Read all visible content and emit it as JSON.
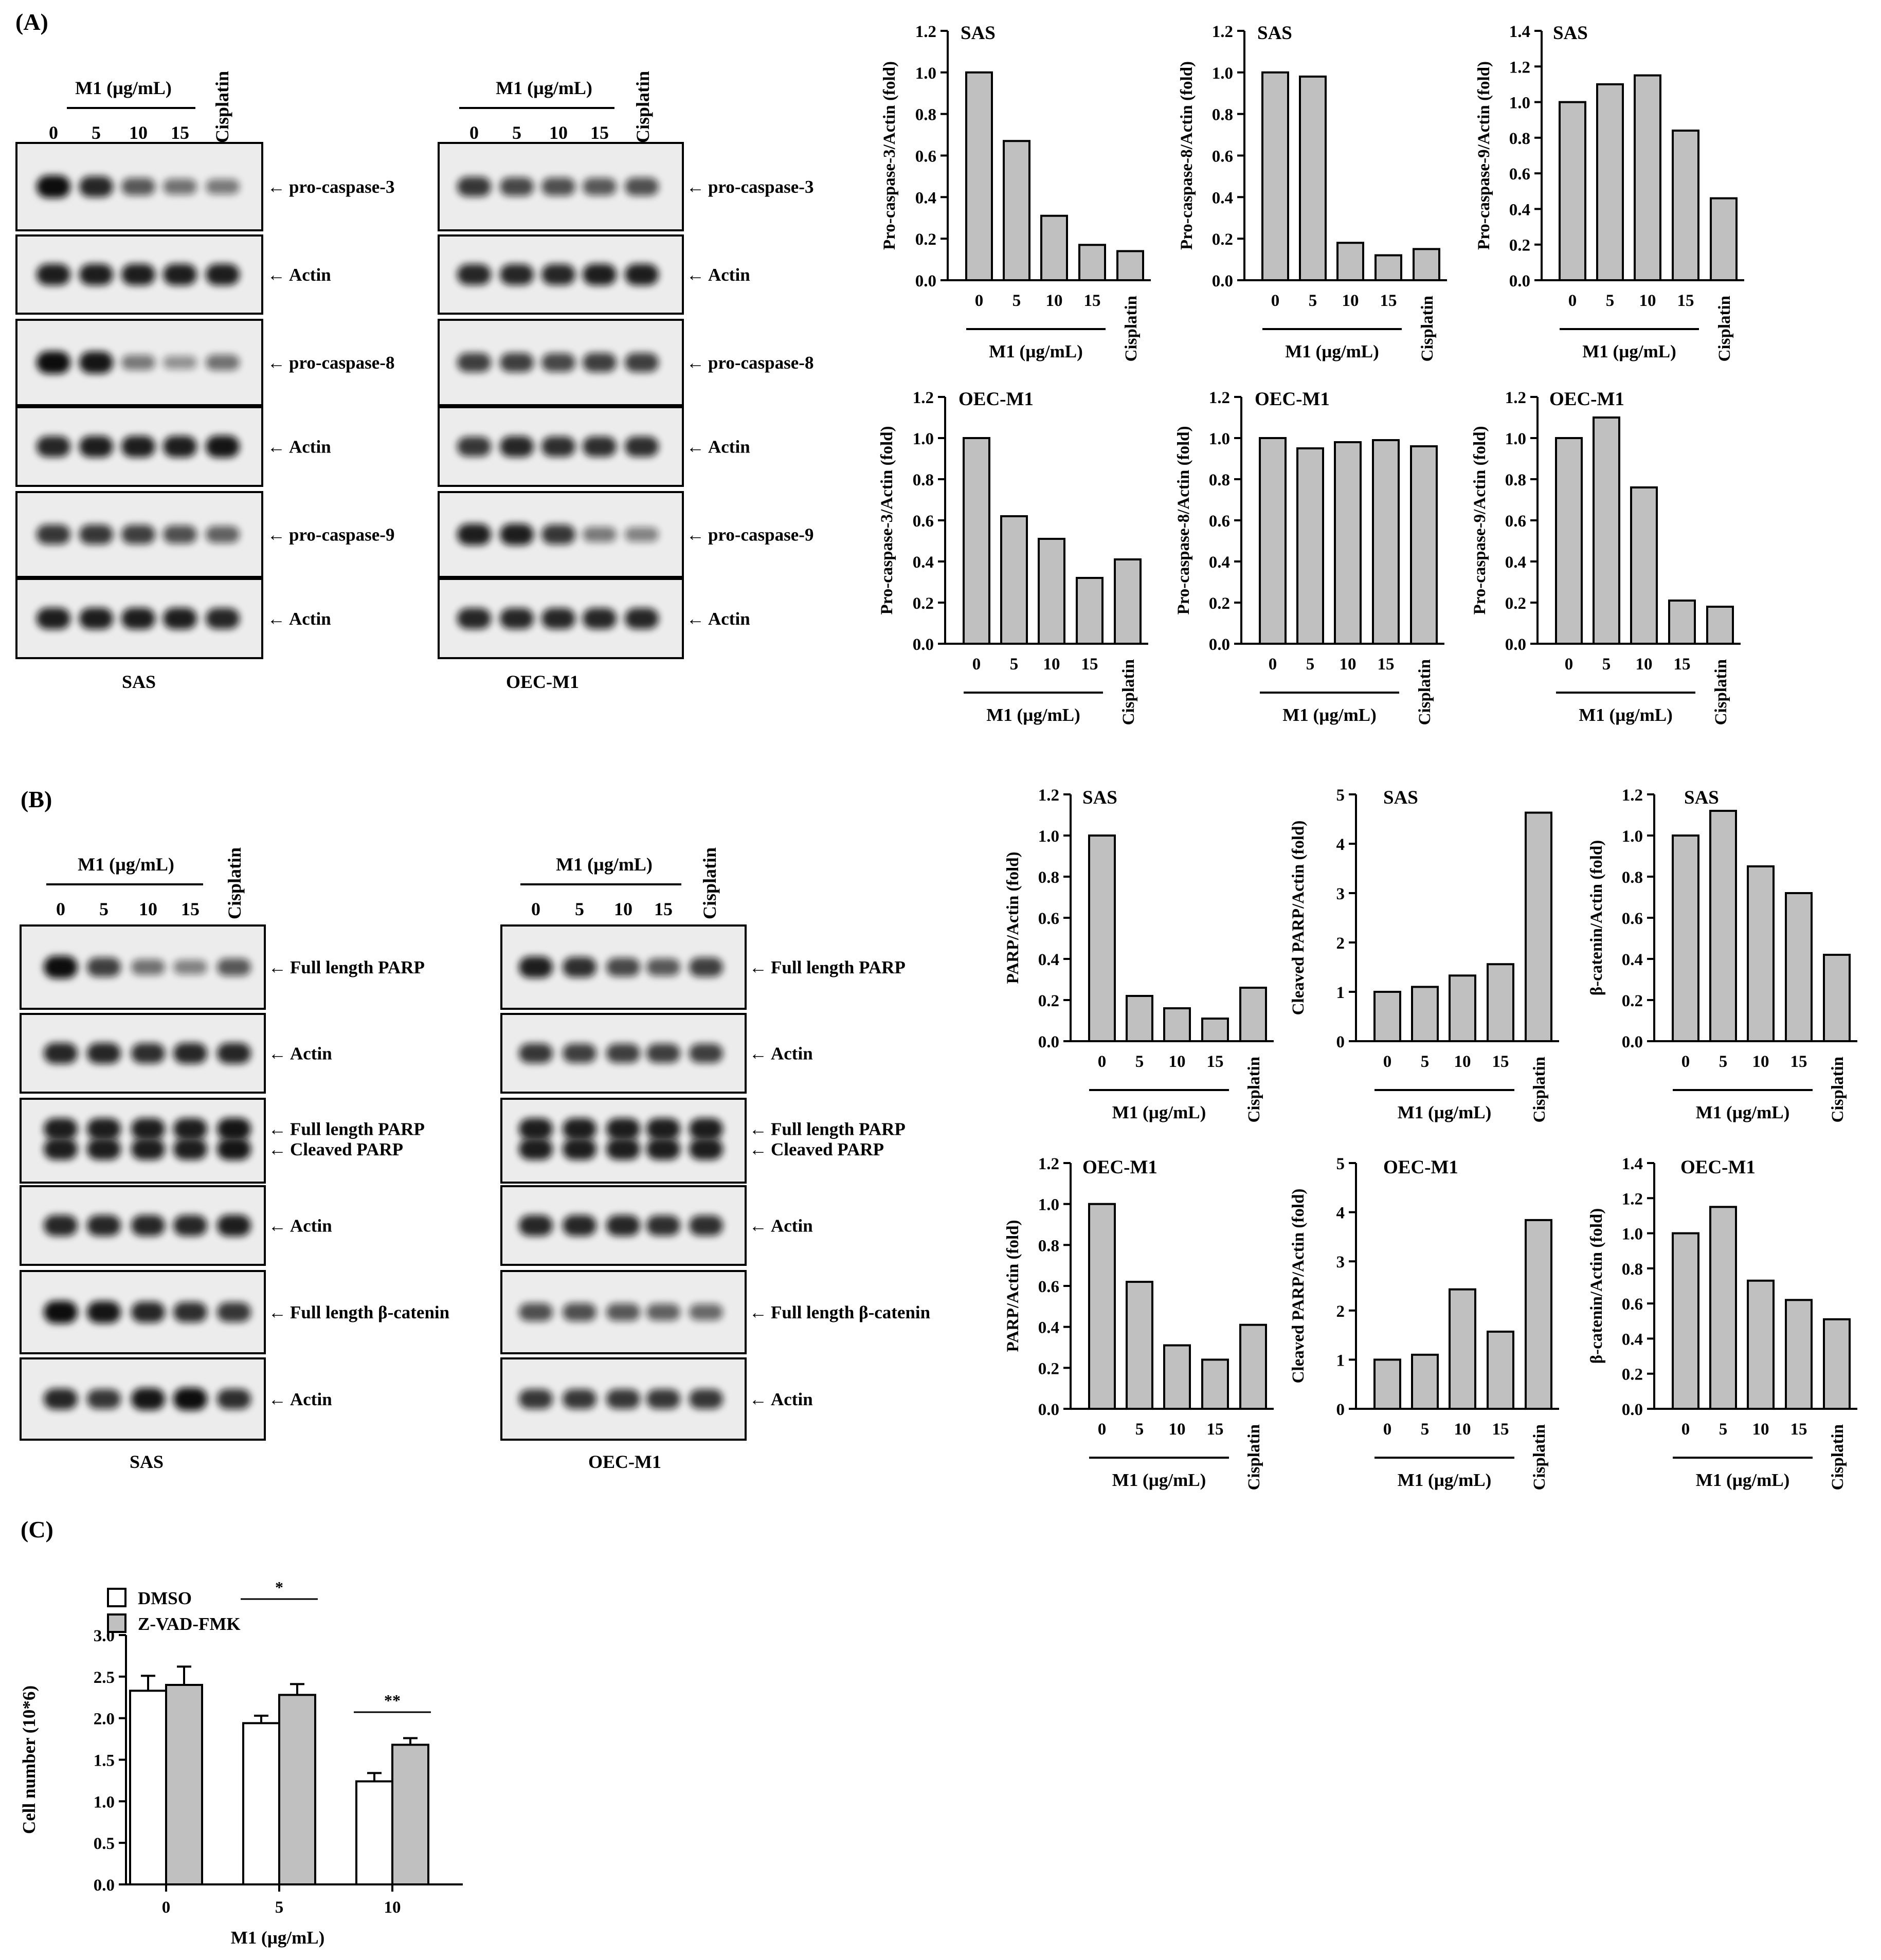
{
  "panels": [
    {
      "id": "A",
      "label": "(A)"
    },
    {
      "id": "B",
      "label": "(B)"
    },
    {
      "id": "C",
      "label": "(C)"
    }
  ],
  "common": {
    "m1_label": "M1 (µg/mL)",
    "cisplatin": "Cisplatin",
    "lanes": [
      "0",
      "5",
      "10",
      "15"
    ]
  },
  "blots": {
    "A_SAS": {
      "cell": "SAS",
      "strips": [
        {
          "labels": [
            "pro-caspase-3"
          ],
          "intensity": [
            1.0,
            0.85,
            0.55,
            0.4,
            0.35
          ]
        },
        {
          "labels": [
            "Actin"
          ],
          "intensity": [
            0.9,
            0.9,
            0.9,
            0.9,
            0.9
          ]
        },
        {
          "labels": [
            "pro-caspase-8"
          ],
          "intensity": [
            1.0,
            0.95,
            0.35,
            0.2,
            0.4
          ]
        },
        {
          "labels": [
            "Actin"
          ],
          "intensity": [
            0.85,
            0.9,
            0.9,
            0.9,
            0.95
          ]
        },
        {
          "labels": [
            "pro-caspase-9"
          ],
          "intensity": [
            0.75,
            0.75,
            0.7,
            0.6,
            0.5
          ]
        },
        {
          "labels": [
            "Actin"
          ],
          "intensity": [
            0.9,
            0.9,
            0.9,
            0.9,
            0.85
          ]
        }
      ]
    },
    "A_OEC": {
      "cell": "OEC-M1",
      "strips": [
        {
          "labels": [
            "pro-caspase-3"
          ],
          "intensity": [
            0.75,
            0.65,
            0.6,
            0.55,
            0.6
          ]
        },
        {
          "labels": [
            "Actin"
          ],
          "intensity": [
            0.85,
            0.85,
            0.85,
            0.9,
            0.9
          ]
        },
        {
          "labels": [
            "pro-caspase-8"
          ],
          "intensity": [
            0.7,
            0.7,
            0.65,
            0.7,
            0.7
          ]
        },
        {
          "labels": [
            "Actin"
          ],
          "intensity": [
            0.75,
            0.85,
            0.8,
            0.8,
            0.8
          ]
        },
        {
          "labels": [
            "pro-caspase-9"
          ],
          "intensity": [
            0.9,
            0.9,
            0.75,
            0.35,
            0.3
          ]
        },
        {
          "labels": [
            "Actin"
          ],
          "intensity": [
            0.85,
            0.85,
            0.85,
            0.85,
            0.85
          ]
        }
      ]
    },
    "B_SAS": {
      "cell": "SAS",
      "strips": [
        {
          "labels": [
            "Full length PARP"
          ],
          "intensity": [
            1.0,
            0.7,
            0.4,
            0.3,
            0.55
          ]
        },
        {
          "labels": [
            "Actin"
          ],
          "intensity": [
            0.85,
            0.85,
            0.8,
            0.85,
            0.85
          ]
        },
        {
          "labels": [
            "Full length PARP",
            "Cleaved PARP"
          ],
          "intensity": [
            0.9,
            0.9,
            0.9,
            0.9,
            0.95
          ]
        },
        {
          "labels": [
            "Actin"
          ],
          "intensity": [
            0.85,
            0.85,
            0.85,
            0.85,
            0.9
          ]
        },
        {
          "labels": [
            "Full length β-catenin"
          ],
          "intensity": [
            1.0,
            0.95,
            0.85,
            0.8,
            0.75
          ]
        },
        {
          "labels": [
            "Actin"
          ],
          "intensity": [
            0.85,
            0.75,
            0.95,
            1.0,
            0.8
          ]
        }
      ]
    },
    "B_OEC": {
      "cell": "OEC-M1",
      "strips": [
        {
          "labels": [
            "Full length PARP"
          ],
          "intensity": [
            0.9,
            0.8,
            0.65,
            0.55,
            0.7
          ]
        },
        {
          "labels": [
            "Actin"
          ],
          "intensity": [
            0.75,
            0.7,
            0.7,
            0.7,
            0.7
          ]
        },
        {
          "labels": [
            "Full length PARP",
            "Cleaved PARP"
          ],
          "intensity": [
            0.9,
            0.9,
            0.9,
            0.9,
            0.9
          ]
        },
        {
          "labels": [
            "Actin"
          ],
          "intensity": [
            0.85,
            0.85,
            0.85,
            0.8,
            0.8
          ]
        },
        {
          "labels": [
            "Full length β-catenin"
          ],
          "intensity": [
            0.6,
            0.6,
            0.55,
            0.5,
            0.45
          ]
        },
        {
          "labels": [
            "Actin"
          ],
          "intensity": [
            0.75,
            0.75,
            0.75,
            0.75,
            0.75
          ]
        }
      ]
    }
  },
  "chart_data": [
    {
      "id": "a1",
      "type": "bar",
      "title": "SAS",
      "ylabel": "Pro-caspase-3/Actin (fold)",
      "xlabel": "M1 (µg/mL)",
      "categories": [
        "0",
        "5",
        "10",
        "15",
        "Cisplatin"
      ],
      "values": [
        1.0,
        0.67,
        0.31,
        0.17,
        0.14
      ],
      "ylim": [
        0,
        1.2
      ],
      "ticks": [
        "0.0",
        "0.2",
        "0.4",
        "0.6",
        "0.8",
        "1.0",
        "1.2"
      ]
    },
    {
      "id": "a2",
      "type": "bar",
      "title": "SAS",
      "ylabel": "Pro-caspase-8/Actin (fold)",
      "xlabel": "M1 (µg/mL)",
      "categories": [
        "0",
        "5",
        "10",
        "15",
        "Cisplatin"
      ],
      "values": [
        1.0,
        0.98,
        0.18,
        0.12,
        0.15
      ],
      "ylim": [
        0,
        1.2
      ],
      "ticks": [
        "0.0",
        "0.2",
        "0.4",
        "0.6",
        "0.8",
        "1.0",
        "1.2"
      ]
    },
    {
      "id": "a3",
      "type": "bar",
      "title": "SAS",
      "ylabel": "Pro-caspase-9/Actin (fold)",
      "xlabel": "M1 (µg/mL)",
      "categories": [
        "0",
        "5",
        "10",
        "15",
        "Cisplatin"
      ],
      "values": [
        1.0,
        1.1,
        1.15,
        0.84,
        0.46
      ],
      "ylim": [
        0,
        1.4
      ],
      "ticks": [
        "0.0",
        "0.2",
        "0.4",
        "0.6",
        "0.8",
        "1.0",
        "1.2",
        "1.4"
      ]
    },
    {
      "id": "a4",
      "type": "bar",
      "title": "OEC-M1",
      "ylabel": "Pro-caspase-3/Actin (fold)",
      "xlabel": "M1 (µg/mL)",
      "categories": [
        "0",
        "5",
        "10",
        "15",
        "Cisplatin"
      ],
      "values": [
        1.0,
        0.62,
        0.51,
        0.32,
        0.41
      ],
      "ylim": [
        0,
        1.2
      ],
      "ticks": [
        "0.0",
        "0.2",
        "0.4",
        "0.6",
        "0.8",
        "1.0",
        "1.2"
      ]
    },
    {
      "id": "a5",
      "type": "bar",
      "title": "OEC-M1",
      "ylabel": "Pro-caspase-8/Actin (fold)",
      "xlabel": "M1 (µg/mL)",
      "categories": [
        "0",
        "5",
        "10",
        "15",
        "Cisplatin"
      ],
      "values": [
        1.0,
        0.95,
        0.98,
        0.99,
        0.96
      ],
      "ylim": [
        0,
        1.2
      ],
      "ticks": [
        "0.0",
        "0.2",
        "0.4",
        "0.6",
        "0.8",
        "1.0",
        "1.2"
      ]
    },
    {
      "id": "a6",
      "type": "bar",
      "title": "OEC-M1",
      "ylabel": "Pro-caspase-9/Actin (fold)",
      "xlabel": "M1 (µg/mL)",
      "categories": [
        "0",
        "5",
        "10",
        "15",
        "Cisplatin"
      ],
      "values": [
        1.0,
        1.1,
        0.76,
        0.21,
        0.18
      ],
      "ylim": [
        0,
        1.2
      ],
      "ticks": [
        "0.0",
        "0.2",
        "0.4",
        "0.6",
        "0.8",
        "1.0",
        "1.2"
      ]
    },
    {
      "id": "b1",
      "type": "bar",
      "title": "SAS",
      "ylabel": "PARP/Actin (fold)",
      "xlabel": "M1 (µg/mL)",
      "categories": [
        "0",
        "5",
        "10",
        "15",
        "Cisplatin"
      ],
      "values": [
        1.0,
        0.22,
        0.16,
        0.11,
        0.26
      ],
      "ylim": [
        0,
        1.2
      ],
      "ticks": [
        "0.0",
        "0.2",
        "0.4",
        "0.6",
        "0.8",
        "1.0",
        "1.2"
      ]
    },
    {
      "id": "b2",
      "type": "bar",
      "title": "SAS",
      "ylabel": "Cleaved PARP/Actin (fold)",
      "xlabel": "M1 (µg/mL)",
      "categories": [
        "0",
        "5",
        "10",
        "15",
        "Cisplatin"
      ],
      "values": [
        1.0,
        1.1,
        1.33,
        1.56,
        4.63
      ],
      "ylim": [
        0,
        5
      ],
      "ticks": [
        "0",
        "1",
        "2",
        "3",
        "4",
        "5"
      ]
    },
    {
      "id": "b3",
      "type": "bar",
      "title": "SAS",
      "ylabel": "β-catenin/Actin (fold)",
      "xlabel": "M1 (µg/mL)",
      "categories": [
        "0",
        "5",
        "10",
        "15",
        "Cisplatin"
      ],
      "values": [
        1.0,
        1.12,
        0.85,
        0.72,
        0.42
      ],
      "ylim": [
        0,
        1.2
      ],
      "ticks": [
        "0.0",
        "0.2",
        "0.4",
        "0.6",
        "0.8",
        "1.0",
        "1.2"
      ]
    },
    {
      "id": "b4",
      "type": "bar",
      "title": "OEC-M1",
      "ylabel": "PARP/Actin (fold)",
      "xlabel": "M1 (µg/mL)",
      "categories": [
        "0",
        "5",
        "10",
        "15",
        "Cisplatin"
      ],
      "values": [
        1.0,
        0.62,
        0.31,
        0.24,
        0.41
      ],
      "ylim": [
        0,
        1.2
      ],
      "ticks": [
        "0.0",
        "0.2",
        "0.4",
        "0.6",
        "0.8",
        "1.0",
        "1.2"
      ]
    },
    {
      "id": "b5",
      "type": "bar",
      "title": "OEC-M1",
      "ylabel": "Cleaved PARP/Actin (fold)",
      "xlabel": "M1 (µg/mL)",
      "categories": [
        "0",
        "5",
        "10",
        "15",
        "Cisplatin"
      ],
      "values": [
        1.0,
        1.1,
        2.43,
        1.57,
        3.84
      ],
      "ylim": [
        0,
        5
      ],
      "ticks": [
        "0",
        "1",
        "2",
        "3",
        "4",
        "5"
      ]
    },
    {
      "id": "b6",
      "type": "bar",
      "title": "OEC-M1",
      "ylabel": "β-catenin/Actin (fold)",
      "xlabel": "M1 (µg/mL)",
      "categories": [
        "0",
        "5",
        "10",
        "15",
        "Cisplatin"
      ],
      "values": [
        1.0,
        1.15,
        0.73,
        0.62,
        0.51
      ],
      "ylim": [
        0,
        1.4
      ],
      "ticks": [
        "0.0",
        "0.2",
        "0.4",
        "0.6",
        "0.8",
        "1.0",
        "1.2",
        "1.4"
      ]
    },
    {
      "id": "c1",
      "type": "bar",
      "title": "",
      "ylabel": "Cell number (10*6)",
      "xlabel": "M1 (µg/mL)",
      "categories": [
        "0",
        "5",
        "10"
      ],
      "series": [
        {
          "name": "DMSO",
          "values": [
            2.33,
            1.94,
            1.24
          ],
          "errors": [
            0.18,
            0.09,
            0.1
          ],
          "color": "#ffffff"
        },
        {
          "name": "Z-VAD-FMK",
          "values": [
            2.4,
            2.28,
            1.68
          ],
          "errors": [
            0.22,
            0.13,
            0.08
          ],
          "color": "#c0c0c0"
        }
      ],
      "significance": [
        "",
        "*",
        "**"
      ],
      "ylim": [
        0,
        3.0
      ],
      "ticks": [
        "0.0",
        "0.5",
        "1.0",
        "1.5",
        "2.0",
        "2.5",
        "3.0"
      ],
      "legend": "top-left"
    }
  ],
  "colors": {
    "bar_fill": "#c0c0c0",
    "axis": "#000000",
    "band": "#111111",
    "membrane": "#ececec"
  }
}
